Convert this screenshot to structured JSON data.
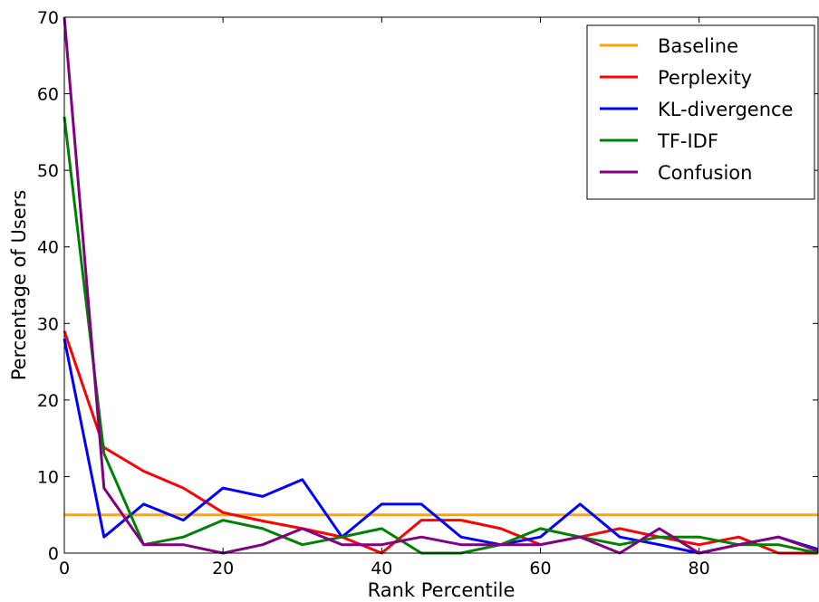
{
  "chart_data": {
    "type": "line",
    "xlabel": "Rank Percentile",
    "ylabel": "Percentage of Users",
    "xlim": [
      0,
      95
    ],
    "ylim": [
      0,
      70
    ],
    "x_ticks": [
      0,
      20,
      40,
      60,
      80
    ],
    "y_ticks": [
      0,
      10,
      20,
      30,
      40,
      50,
      60,
      70
    ],
    "grid": false,
    "legend_position": "top-right",
    "x": [
      0,
      5,
      10,
      15,
      20,
      25,
      30,
      35,
      40,
      45,
      50,
      55,
      60,
      65,
      70,
      75,
      80,
      85,
      90,
      95
    ],
    "series": [
      {
        "name": "Baseline",
        "color": "#ffa500",
        "values": [
          5,
          5,
          5,
          5,
          5,
          5,
          5,
          5,
          5,
          5,
          5,
          5,
          5,
          5,
          5,
          5,
          5,
          5,
          5,
          5
        ]
      },
      {
        "name": "Perplexity",
        "color": "#ff0000",
        "values": [
          29,
          13.8,
          10.7,
          8.5,
          5.3,
          4.2,
          3.2,
          2.1,
          0,
          4.3,
          4.3,
          3.2,
          1.1,
          2.1,
          3.2,
          2.1,
          1.1,
          2.1,
          0,
          0
        ]
      },
      {
        "name": "KL-divergence",
        "color": "#0000ff",
        "values": [
          28,
          2.1,
          6.4,
          4.3,
          8.5,
          7.4,
          9.6,
          2.1,
          6.4,
          6.4,
          2.1,
          1.1,
          2.1,
          6.4,
          2.1,
          1.1,
          0,
          1.1,
          2.1,
          0.5
        ]
      },
      {
        "name": "TF-IDF",
        "color": "#008000",
        "values": [
          57,
          13,
          1.1,
          2.1,
          4.3,
          3.2,
          1.1,
          2.1,
          3.2,
          0,
          0,
          1.1,
          3.2,
          2.1,
          1.1,
          2.1,
          2.1,
          1.1,
          1.1,
          0
        ]
      },
      {
        "name": "Confusion",
        "color": "#800080",
        "values": [
          70,
          8.5,
          1.1,
          1.1,
          0,
          1.1,
          3.2,
          1.1,
          1.1,
          2.1,
          1.1,
          1.1,
          1.1,
          2.1,
          0,
          3.2,
          0,
          1.1,
          2.1,
          0.3
        ]
      }
    ]
  }
}
